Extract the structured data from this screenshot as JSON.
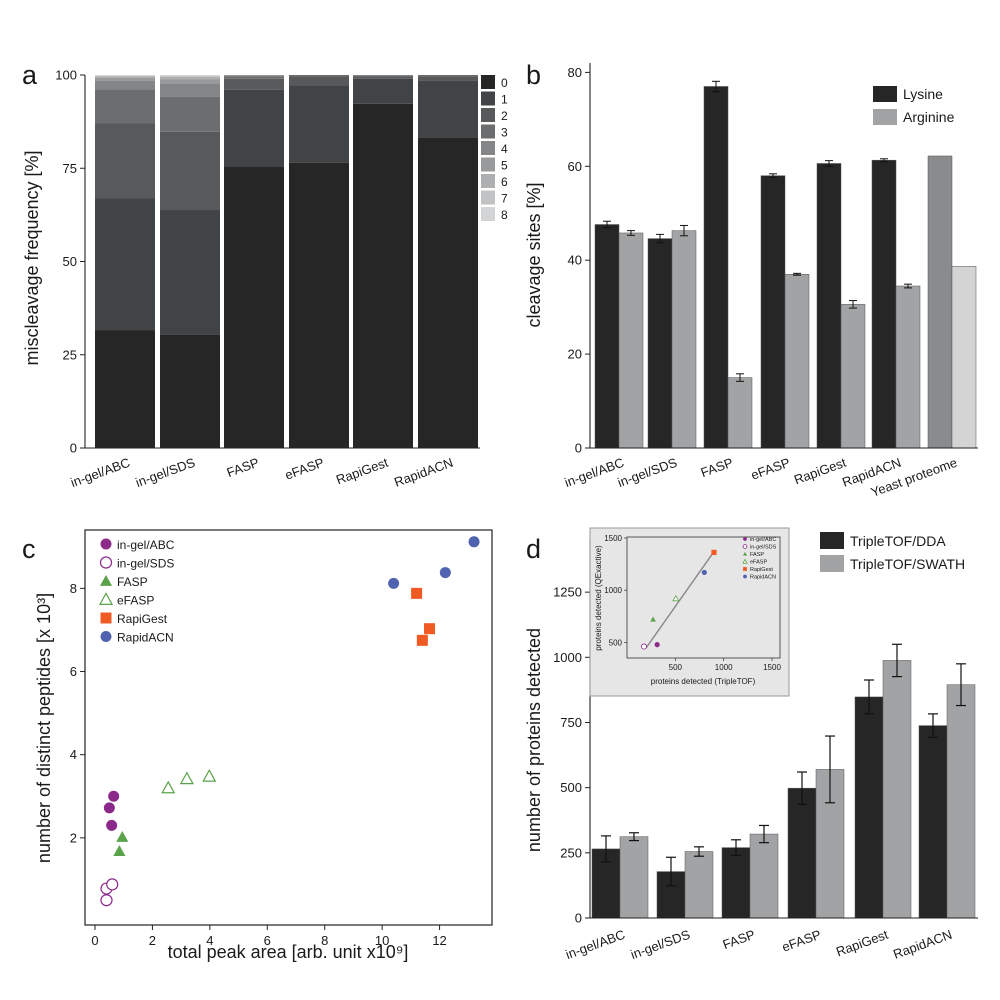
{
  "panels": {
    "a": "a",
    "b": "b",
    "c": "c",
    "d": "d"
  },
  "chart_data": [
    {
      "id": "a",
      "type": "bar",
      "stacked": true,
      "ylabel": "miscleavage frequency [%]",
      "ylim": [
        0,
        100
      ],
      "yticks": [
        0,
        25,
        50,
        75,
        100
      ],
      "categories": [
        "in-gel/ABC",
        "in-gel/SDS",
        "FASP",
        "eFASP",
        "RapiGest",
        "RapidACN"
      ],
      "legend_position": "right",
      "series": [
        {
          "name": "0",
          "color": "#262626",
          "values": [
            31.5,
            30.5,
            75.5,
            76.5,
            92.3,
            83.3
          ]
        },
        {
          "name": "1",
          "color": "#414446",
          "values": [
            35.5,
            33.3,
            20.5,
            20.7,
            6.7,
            15.2
          ]
        },
        {
          "name": "2",
          "color": "#57595b",
          "values": [
            20.0,
            21.0,
            3.0,
            2.5,
            0.7,
            1.2
          ]
        },
        {
          "name": "3",
          "color": "#6b6d6f",
          "values": [
            9.2,
            9.4,
            0.7,
            0.3,
            0.2,
            0.3
          ]
        },
        {
          "name": "4",
          "color": "#838586",
          "values": [
            2.2,
            3.5,
            0.2,
            0,
            0.1,
            0
          ]
        },
        {
          "name": "5",
          "color": "#999a9b",
          "values": [
            0.8,
            1.2,
            0.1,
            0,
            0,
            0
          ]
        },
        {
          "name": "6",
          "color": "#aeafb0",
          "values": [
            0.4,
            0.6,
            0,
            0,
            0,
            0
          ]
        },
        {
          "name": "7",
          "color": "#c1c2c3",
          "values": [
            0.2,
            0.3,
            0,
            0,
            0,
            0
          ]
        },
        {
          "name": "8",
          "color": "#d3d4d5",
          "values": [
            0.2,
            0.2,
            0,
            0,
            0,
            0
          ]
        }
      ]
    },
    {
      "id": "b",
      "type": "bar",
      "ylabel": "cleavage sites [%]",
      "ylim": [
        0,
        82
      ],
      "yticks": [
        0,
        20,
        40,
        60,
        80
      ],
      "categories": [
        "in-gel/ABC",
        "in-gel/SDS",
        "FASP",
        "eFASP",
        "RapiGest",
        "RapidACN",
        "Yeast proteome"
      ],
      "legend_position": "top-right",
      "series": [
        {
          "name": "Lysine",
          "color": "#262626",
          "values": [
            47.6,
            44.6,
            77.0,
            58.0,
            60.6,
            61.3,
            62.2
          ],
          "errors": [
            0.7,
            0.9,
            1.1,
            0.4,
            0.6,
            0.3,
            null
          ]
        },
        {
          "name": "Arginine",
          "color": "#a2a3a4",
          "values": [
            45.8,
            46.3,
            15.0,
            37.0,
            30.6,
            34.5,
            38.7
          ],
          "errors": [
            0.5,
            1.1,
            0.8,
            0.2,
            0.8,
            0.4,
            null
          ]
        }
      ],
      "yeast_colors": [
        "#8a8b8c",
        "#d4d4d5"
      ]
    },
    {
      "id": "c",
      "type": "scatter",
      "xlabel": "total peak area [arb. unit x10⁹]",
      "ylabel": "number of distinct peptides [x 10³]",
      "xlim": [
        0,
        14
      ],
      "ylim": [
        0,
        9.5
      ],
      "xticks": [
        0,
        2,
        4,
        6,
        8,
        10,
        12
      ],
      "yticks": [
        2,
        4,
        6,
        8
      ],
      "legend_position": "top-left",
      "series": [
        {
          "name": "in-gel/ABC",
          "marker": "circle",
          "filled": true,
          "color": "#8b2a8b",
          "points": [
            [
              0.5,
              2.72
            ],
            [
              0.65,
              3.0
            ],
            [
              0.58,
              2.3
            ]
          ]
        },
        {
          "name": "in-gel/SDS",
          "marker": "circle",
          "filled": false,
          "color": "#8b2a8b",
          "points": [
            [
              0.4,
              0.78
            ],
            [
              0.6,
              0.88
            ],
            [
              0.4,
              0.5
            ]
          ]
        },
        {
          "name": "FASP",
          "marker": "triangle",
          "filled": true,
          "color": "#5aa34a",
          "points": [
            [
              0.95,
              2.02
            ],
            [
              0.85,
              1.68
            ]
          ]
        },
        {
          "name": "eFASP",
          "marker": "triangle",
          "filled": false,
          "color": "#5aa34a",
          "points": [
            [
              2.55,
              3.2
            ],
            [
              3.2,
              3.42
            ],
            [
              3.98,
              3.48
            ]
          ]
        },
        {
          "name": "RapiGest",
          "marker": "square",
          "filled": true,
          "color": "#f05a23",
          "points": [
            [
              11.2,
              7.88
            ],
            [
              11.65,
              7.03
            ],
            [
              11.4,
              6.75
            ]
          ]
        },
        {
          "name": "RapidACN",
          "marker": "circle",
          "filled": true,
          "color": "#4f63b0",
          "points": [
            [
              10.4,
              8.12
            ],
            [
              12.2,
              8.38
            ],
            [
              13.2,
              9.12
            ]
          ]
        }
      ]
    },
    {
      "id": "d",
      "type": "bar",
      "ylabel": "number of proteins detected",
      "ylim": [
        0,
        1450
      ],
      "yticks": [
        0,
        250,
        500,
        750,
        1000,
        1250
      ],
      "categories": [
        "in-gel/ABC",
        "in-gel/SDS",
        "FASP",
        "eFASP",
        "RapiGest",
        "RapidACN"
      ],
      "legend_position": "top-right",
      "series": [
        {
          "name": "TripleTOF/DDA",
          "color": "#262626",
          "values": [
            265,
            178,
            270,
            498,
            848,
            738
          ],
          "errors": [
            50,
            55,
            30,
            62,
            65,
            45
          ]
        },
        {
          "name": "TripleTOF/SWATH",
          "color": "#a2a3a4",
          "values": [
            312,
            255,
            322,
            570,
            988,
            895
          ],
          "errors": [
            15,
            18,
            33,
            128,
            62,
            80
          ]
        }
      ]
    },
    {
      "id": "d-inset",
      "type": "scatter",
      "xlabel": "proteins detected (TripleTOF)",
      "ylabel": "proteins detected (QExactive)",
      "xlim": [
        0,
        1500
      ],
      "ylim": [
        350,
        1500
      ],
      "xticks": [
        500,
        1000,
        1500
      ],
      "yticks": [
        500,
        1000,
        1500
      ],
      "trendline": [
        [
          200,
          450
        ],
        [
          900,
          1370
        ]
      ],
      "legend_position": "top-right",
      "series": [
        {
          "name": "in-gel/ABC",
          "marker": "circle",
          "filled": true,
          "color": "#8b2a8b",
          "points": [
            [
              312,
              478
            ]
          ]
        },
        {
          "name": "in-gel/SDS",
          "marker": "circle",
          "filled": false,
          "color": "#8b2a8b",
          "points": [
            [
              175,
              460
            ]
          ]
        },
        {
          "name": "FASP",
          "marker": "triangle",
          "filled": true,
          "color": "#5aa34a",
          "points": [
            [
              270,
              720
            ]
          ]
        },
        {
          "name": "eFASP",
          "marker": "triangle",
          "filled": false,
          "color": "#5aa34a",
          "points": [
            [
              505,
              920
            ]
          ]
        },
        {
          "name": "RapiGest",
          "marker": "square",
          "filled": true,
          "color": "#f05a23",
          "points": [
            [
              900,
              1362
            ]
          ]
        },
        {
          "name": "RapidACN",
          "marker": "circle",
          "filled": true,
          "color": "#4f63b0",
          "points": [
            [
              800,
              1170
            ]
          ]
        }
      ]
    }
  ]
}
